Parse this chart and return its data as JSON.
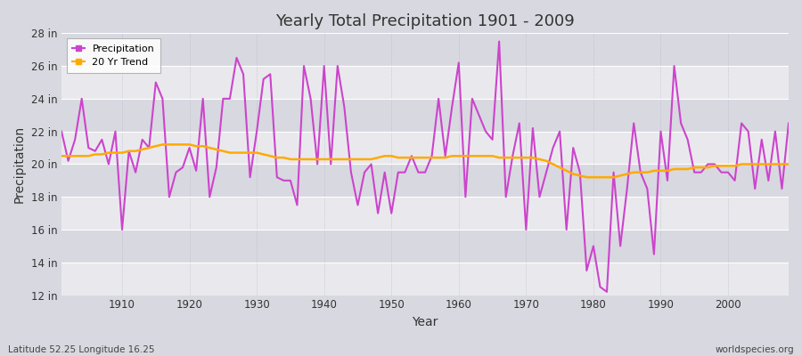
{
  "title": "Yearly Total Precipitation 1901 - 2009",
  "xlabel": "Year",
  "ylabel": "Precipitation",
  "bottom_left_label": "Latitude 52.25 Longitude 16.25",
  "bottom_right_label": "worldspecies.org",
  "background_color": "#d8d8e0",
  "plot_bg_color": "#d8d8e0",
  "grid_color_h": "#ffffff",
  "grid_color_v": "#c0c0cc",
  "precip_color": "#cc44cc",
  "trend_color": "#ffaa00",
  "ylim": [
    12,
    28
  ],
  "yticks": [
    12,
    14,
    16,
    18,
    20,
    22,
    24,
    26,
    28
  ],
  "ytick_labels": [
    "12 in",
    "14 in",
    "16 in",
    "18 in",
    "20 in",
    "22 in",
    "24 in",
    "26 in",
    "28 in"
  ],
  "xticks": [
    1910,
    1920,
    1930,
    1940,
    1950,
    1960,
    1970,
    1980,
    1990,
    2000
  ],
  "xlim_left": 1901,
  "xlim_right": 2009,
  "years": [
    1901,
    1902,
    1903,
    1904,
    1905,
    1906,
    1907,
    1908,
    1909,
    1910,
    1911,
    1912,
    1913,
    1914,
    1915,
    1916,
    1917,
    1918,
    1919,
    1920,
    1921,
    1922,
    1923,
    1924,
    1925,
    1926,
    1927,
    1928,
    1929,
    1930,
    1931,
    1932,
    1933,
    1934,
    1935,
    1936,
    1937,
    1938,
    1939,
    1940,
    1941,
    1942,
    1943,
    1944,
    1945,
    1946,
    1947,
    1948,
    1949,
    1950,
    1951,
    1952,
    1953,
    1954,
    1955,
    1956,
    1957,
    1958,
    1959,
    1960,
    1961,
    1962,
    1963,
    1964,
    1965,
    1966,
    1967,
    1968,
    1969,
    1970,
    1971,
    1972,
    1973,
    1974,
    1975,
    1976,
    1977,
    1978,
    1979,
    1980,
    1981,
    1982,
    1983,
    1984,
    1985,
    1986,
    1987,
    1988,
    1989,
    1990,
    1991,
    1992,
    1993,
    1994,
    1995,
    1996,
    1997,
    1998,
    1999,
    2000,
    2001,
    2002,
    2003,
    2004,
    2005,
    2006,
    2007,
    2008,
    2009
  ],
  "precip": [
    22.0,
    20.2,
    21.5,
    24.0,
    21.0,
    20.8,
    21.5,
    20.0,
    22.0,
    16.0,
    20.8,
    19.5,
    21.5,
    21.0,
    25.0,
    24.0,
    18.0,
    19.5,
    19.8,
    21.0,
    19.6,
    24.0,
    18.0,
    19.8,
    24.0,
    24.0,
    26.5,
    25.5,
    19.2,
    22.0,
    25.2,
    25.5,
    19.2,
    19.0,
    19.0,
    17.5,
    26.0,
    24.0,
    20.0,
    26.0,
    20.0,
    26.0,
    23.5,
    19.5,
    17.5,
    19.5,
    20.0,
    17.0,
    19.5,
    17.0,
    19.5,
    19.5,
    20.5,
    19.5,
    19.5,
    20.5,
    24.0,
    20.5,
    23.5,
    26.2,
    18.0,
    24.0,
    23.0,
    22.0,
    21.5,
    27.5,
    18.0,
    20.5,
    22.5,
    16.0,
    22.2,
    18.0,
    19.5,
    21.0,
    22.0,
    16.0,
    21.0,
    19.5,
    13.5,
    15.0,
    12.5,
    12.2,
    19.5,
    15.0,
    18.5,
    22.5,
    19.5,
    18.5,
    14.5,
    22.0,
    19.0,
    26.0,
    22.5,
    21.5,
    19.5,
    19.5,
    20.0,
    20.0,
    19.5,
    19.5,
    19.0,
    22.5,
    22.0,
    18.5,
    21.5,
    19.0,
    22.0,
    18.5,
    22.5
  ],
  "trend": [
    20.5,
    20.5,
    20.5,
    20.5,
    20.5,
    20.6,
    20.6,
    20.7,
    20.7,
    20.7,
    20.8,
    20.8,
    20.9,
    21.0,
    21.1,
    21.2,
    21.2,
    21.2,
    21.2,
    21.2,
    21.1,
    21.1,
    21.0,
    20.9,
    20.8,
    20.7,
    20.7,
    20.7,
    20.7,
    20.7,
    20.6,
    20.5,
    20.4,
    20.4,
    20.3,
    20.3,
    20.3,
    20.3,
    20.3,
    20.3,
    20.3,
    20.3,
    20.3,
    20.3,
    20.3,
    20.3,
    20.3,
    20.4,
    20.5,
    20.5,
    20.4,
    20.4,
    20.4,
    20.4,
    20.4,
    20.4,
    20.4,
    20.4,
    20.5,
    20.5,
    20.5,
    20.5,
    20.5,
    20.5,
    20.5,
    20.4,
    20.4,
    20.4,
    20.4,
    20.4,
    20.4,
    20.3,
    20.2,
    20.0,
    19.8,
    19.6,
    19.4,
    19.3,
    19.2,
    19.2,
    19.2,
    19.2,
    19.2,
    19.3,
    19.4,
    19.5,
    19.5,
    19.5,
    19.6,
    19.6,
    19.6,
    19.7,
    19.7,
    19.7,
    19.8,
    19.8,
    19.8,
    19.9,
    19.9,
    19.9,
    19.9,
    20.0,
    20.0,
    20.0,
    20.0,
    20.0,
    20.0,
    20.0,
    20.0
  ]
}
